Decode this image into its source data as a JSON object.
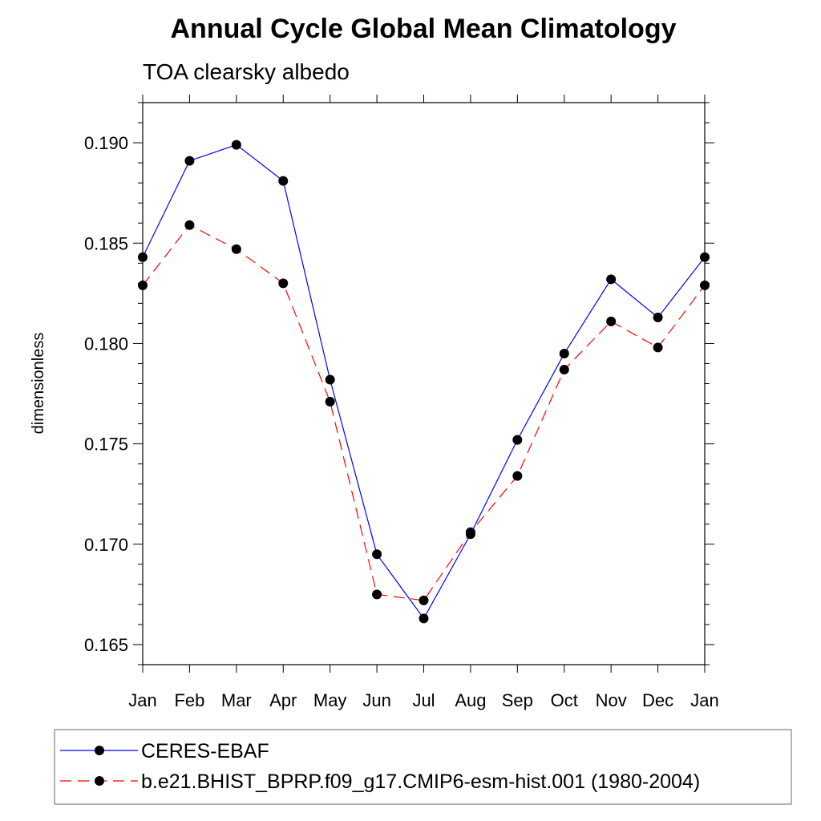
{
  "chart_data": {
    "type": "line",
    "title": "Annual Cycle Global Mean Climatology",
    "subtitle": "TOA clearsky albedo",
    "xlabel": "",
    "ylabel": "dimensionless",
    "categories": [
      "Jan",
      "Feb",
      "Mar",
      "Apr",
      "May",
      "Jun",
      "Jul",
      "Aug",
      "Sep",
      "Oct",
      "Nov",
      "Dec",
      "Jan"
    ],
    "ylim": [
      0.164,
      0.192
    ],
    "yticks": [
      0.165,
      0.17,
      0.175,
      0.18,
      0.185,
      0.19
    ],
    "ytick_labels": [
      "0.165",
      "0.170",
      "0.175",
      "0.180",
      "0.185",
      "0.190"
    ],
    "grid": false,
    "legend_position": "bottom",
    "series": [
      {
        "name": "CERES-EBAF",
        "color": "#0000ff",
        "dash": "solid",
        "marker": "circle",
        "values": [
          0.1843,
          0.1891,
          0.1899,
          0.1881,
          0.1782,
          0.1695,
          0.1663,
          0.1705,
          0.1752,
          0.1795,
          0.1832,
          0.1813,
          0.1843
        ]
      },
      {
        "name": "b.e21.BHIST_BPRP.f09_g17.CMIP6-esm-hist.001 (1980-2004)",
        "color": "#ff0000",
        "dash": "dashed",
        "marker": "circle",
        "values": [
          0.1829,
          0.1859,
          0.1847,
          0.183,
          0.1771,
          0.1675,
          0.1672,
          0.1706,
          0.1734,
          0.1787,
          0.1811,
          0.1798,
          0.1829
        ]
      }
    ]
  }
}
